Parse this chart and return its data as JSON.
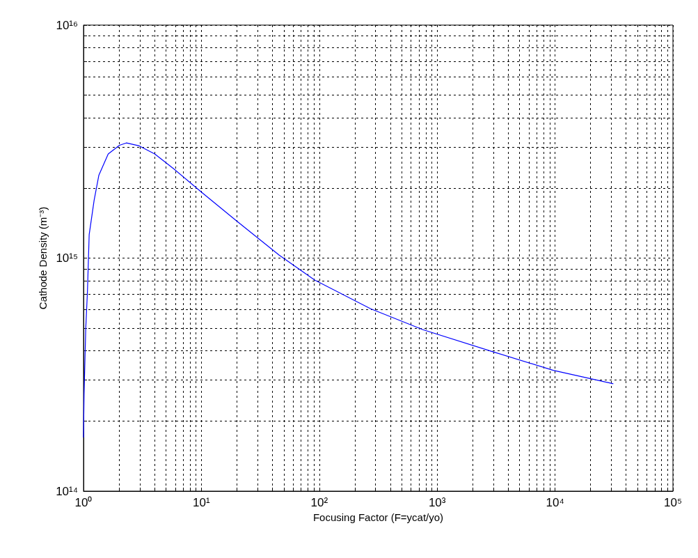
{
  "chart_data": {
    "type": "line",
    "xlabel": "Focusing Factor (F=ycat/yo)",
    "ylabel": "Cathode Density (m⁻³)",
    "log": "xy",
    "grid": true,
    "marker": "none",
    "line_style": "solid",
    "xlim": [
      1,
      100000
    ],
    "ylim": [
      100000000000000.0,
      1e+16
    ],
    "xticks": [
      {
        "value": 1,
        "label": "10⁰"
      },
      {
        "value": 2,
        "label": null
      },
      {
        "value": 3,
        "label": null
      },
      {
        "value": 4,
        "label": null
      },
      {
        "value": 5,
        "label": null
      },
      {
        "value": 6,
        "label": null
      },
      {
        "value": 7,
        "label": null
      },
      {
        "value": 8,
        "label": null
      },
      {
        "value": 9,
        "label": null
      },
      {
        "value": 10,
        "label": "10¹"
      },
      {
        "value": 20,
        "label": null
      },
      {
        "value": 30,
        "label": null
      },
      {
        "value": 40,
        "label": null
      },
      {
        "value": 50,
        "label": null
      },
      {
        "value": 60,
        "label": null
      },
      {
        "value": 70,
        "label": null
      },
      {
        "value": 80,
        "label": null
      },
      {
        "value": 90,
        "label": null
      },
      {
        "value": 100,
        "label": "10²"
      },
      {
        "value": 200,
        "label": null
      },
      {
        "value": 300,
        "label": null
      },
      {
        "value": 400,
        "label": null
      },
      {
        "value": 500,
        "label": null
      },
      {
        "value": 600,
        "label": null
      },
      {
        "value": 700,
        "label": null
      },
      {
        "value": 800,
        "label": null
      },
      {
        "value": 900,
        "label": null
      },
      {
        "value": 1000,
        "label": "10³"
      },
      {
        "value": 2000,
        "label": null
      },
      {
        "value": 3000,
        "label": null
      },
      {
        "value": 4000,
        "label": null
      },
      {
        "value": 5000,
        "label": null
      },
      {
        "value": 6000,
        "label": null
      },
      {
        "value": 7000,
        "label": null
      },
      {
        "value": 8000,
        "label": null
      },
      {
        "value": 9000,
        "label": null
      },
      {
        "value": 10000,
        "label": "10⁴"
      },
      {
        "value": 20000,
        "label": null
      },
      {
        "value": 30000,
        "label": null
      },
      {
        "value": 40000,
        "label": null
      },
      {
        "value": 50000,
        "label": null
      },
      {
        "value": 60000,
        "label": null
      },
      {
        "value": 70000,
        "label": null
      },
      {
        "value": 80000,
        "label": null
      },
      {
        "value": 90000,
        "label": null
      },
      {
        "value": 100000,
        "label": "10⁵"
      }
    ],
    "yticks": [
      {
        "value": 100000000000000.0,
        "label": "10¹⁴"
      },
      {
        "value": 200000000000000.0,
        "label": null
      },
      {
        "value": 300000000000000.0,
        "label": null
      },
      {
        "value": 400000000000000.0,
        "label": null
      },
      {
        "value": 500000000000000.0,
        "label": null
      },
      {
        "value": 600000000000000.0,
        "label": null
      },
      {
        "value": 700000000000000.0,
        "label": null
      },
      {
        "value": 800000000000000.0,
        "label": null
      },
      {
        "value": 900000000000000.0,
        "label": null
      },
      {
        "value": 1000000000000000.0,
        "label": "10¹⁵"
      },
      {
        "value": 2000000000000000.0,
        "label": null
      },
      {
        "value": 3000000000000000.0,
        "label": null
      },
      {
        "value": 4000000000000000.0,
        "label": null
      },
      {
        "value": 5000000000000000.0,
        "label": null
      },
      {
        "value": 6000000000000000.0,
        "label": null
      },
      {
        "value": 7000000000000000.0,
        "label": null
      },
      {
        "value": 8000000000000000.0,
        "label": null
      },
      {
        "value": 9000000000000000.0,
        "label": null
      },
      {
        "value": 1e+16,
        "label": "10¹⁶"
      }
    ],
    "series": [
      {
        "color": "#0000ff",
        "x": [
          1,
          1.011,
          1.045,
          1.08,
          1.117,
          1.23,
          1.35,
          1.62,
          2.02,
          2.31,
          2.97,
          4.02,
          5.92,
          10,
          20,
          45.7,
          91.4,
          273,
          757,
          2990,
          9660,
          31200
        ],
        "values": [
          170000000000000.0,
          260000000000000.0,
          500000000000000.0,
          720000000000000.0,
          1260000000000000.0,
          1770000000000000.0,
          2270000000000000.0,
          2800000000000000.0,
          3050000000000000.0,
          3120000000000000.0,
          3030000000000000.0,
          2800000000000000.0,
          2400000000000000.0,
          1920000000000000.0,
          1440000000000000.0,
          1030000000000000.0,
          805000000000000.0,
          606000000000000.0,
          493000000000000.0,
          396000000000000.0,
          330000000000000.0,
          289000000000000.0
        ]
      }
    ]
  }
}
